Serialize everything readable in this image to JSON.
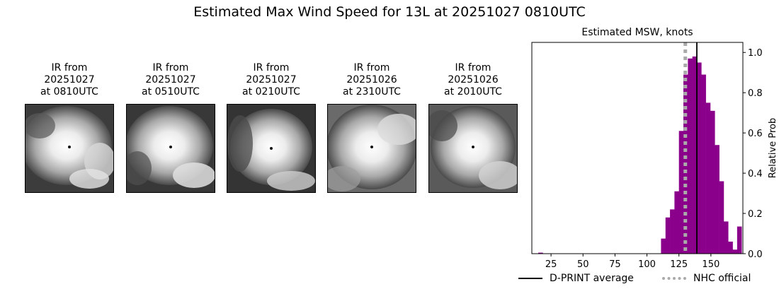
{
  "figure": {
    "suptitle": "Estimated Max Wind Speed for 13L at 20251027 0810UTC"
  },
  "ir_panels": [
    {
      "line1": "IR from",
      "line2": "20251027",
      "line3": "at 0810UTC"
    },
    {
      "line1": "IR from",
      "line2": "20251027",
      "line3": "at 0510UTC"
    },
    {
      "line1": "IR from",
      "line2": "20251027",
      "line3": "at 0210UTC"
    },
    {
      "line1": "IR from",
      "line2": "20251026",
      "line3": "at 2310UTC"
    },
    {
      "line1": "IR from",
      "line2": "20251026",
      "line3": "at 2010UTC"
    }
  ],
  "chart_data": {
    "type": "bar",
    "title": "Estimated MSW, knots",
    "xlabel": "",
    "ylabel": "Relative Prob",
    "xlim": [
      10,
      175
    ],
    "ylim": [
      0,
      1.05
    ],
    "xticks": [
      25,
      50,
      75,
      100,
      125,
      150
    ],
    "yticks": [
      0.0,
      0.2,
      0.4,
      0.6,
      0.8,
      1.0
    ],
    "ytick_labels": [
      "0.0",
      "0.2",
      "0.4",
      "0.6",
      "0.8",
      "1.0"
    ],
    "y_axis_side": "right",
    "bar_color": "#8b008b",
    "bin_width": 3.5,
    "bin_starts": [
      15,
      111,
      114.5,
      118,
      121.5,
      125,
      128.5,
      132,
      135.5,
      139,
      142.5,
      146,
      149.5,
      153,
      156.5,
      160,
      163.5,
      167,
      170.5
    ],
    "values": [
      0.005,
      0.075,
      0.18,
      0.22,
      0.31,
      0.61,
      0.89,
      0.97,
      0.98,
      0.95,
      0.89,
      0.75,
      0.71,
      0.54,
      0.36,
      0.16,
      0.06,
      0.02,
      0.135
    ],
    "dprint_average": 139,
    "nhc_official": 130,
    "legend": [
      {
        "label": "D-PRINT average",
        "style": "solid",
        "color": "#000000"
      },
      {
        "label": "NHC official",
        "style": "dotted",
        "color": "#aaaaaa"
      }
    ],
    "legend_position": "bottom",
    "grid": false
  }
}
